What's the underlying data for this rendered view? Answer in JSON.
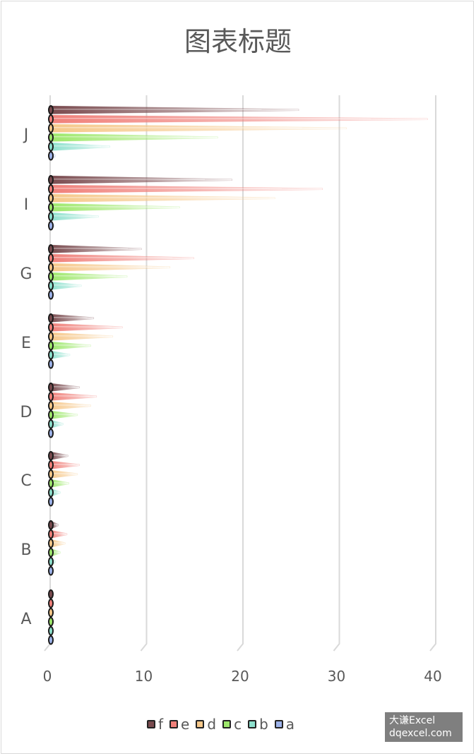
{
  "chart_data": {
    "type": "bar",
    "orientation": "horizontal",
    "title": "图表标题",
    "categories": [
      "A",
      "B",
      "C",
      "D",
      "E",
      "G",
      "I",
      "J"
    ],
    "series": [
      {
        "name": "a",
        "color": "#9db3ea",
        "values": [
          0.1,
          0.1,
          0.1,
          0.2,
          0.2,
          0.3,
          0.4,
          0.5
        ]
      },
      {
        "name": "b",
        "color": "#8de0cd",
        "values": [
          0.2,
          0.5,
          1.0,
          1.3,
          2.0,
          3.2,
          5.0,
          6.2
        ]
      },
      {
        "name": "c",
        "color": "#9ee86c",
        "values": [
          0.3,
          1.0,
          1.9,
          2.8,
          4.2,
          8.0,
          13.5,
          17.5
        ]
      },
      {
        "name": "d",
        "color": "#f6c88a",
        "values": [
          0.3,
          1.5,
          2.8,
          4.2,
          6.5,
          12.5,
          23.5,
          31.0
        ]
      },
      {
        "name": "e",
        "color": "#f0807a",
        "values": [
          0.3,
          1.7,
          3.0,
          4.8,
          7.5,
          15.0,
          28.5,
          39.5
        ]
      },
      {
        "name": "f",
        "color": "#7a4b4f",
        "values": [
          0.2,
          0.8,
          1.8,
          3.0,
          4.5,
          9.5,
          19.0,
          26.0
        ]
      }
    ],
    "xlim": [
      0,
      40
    ],
    "xticks": [
      "0",
      "10",
      "20",
      "30",
      "40"
    ],
    "grid": true,
    "legend_position": "bottom",
    "legend": [
      "f",
      "e",
      "d",
      "c",
      "b",
      "a"
    ]
  },
  "watermark": {
    "line1": "大谦Excel",
    "line2": "dqexcel.com"
  }
}
